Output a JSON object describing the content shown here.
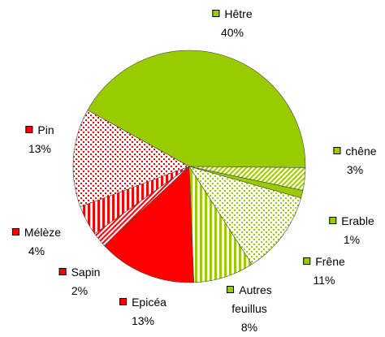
{
  "chart_data": {
    "type": "pie",
    "categories": [
      "Hêtre",
      "chêne",
      "Erable",
      "Frêne",
      "Autres feuillus",
      "Epicéa",
      "Sapin",
      "Mélèze",
      "Pin"
    ],
    "values": [
      40,
      3,
      1,
      11,
      8,
      13,
      2,
      4,
      13
    ],
    "value_labels": [
      "40%",
      "3%",
      "1%",
      "11%",
      "8%",
      "13%",
      "2%",
      "4%",
      "13%"
    ],
    "colors": [
      "#99cc00",
      "#99cc00",
      "#99cc00",
      "#99cc00",
      "#99cc00",
      "#ff0000",
      "#ff0000",
      "#ff0000",
      "#ff0000"
    ],
    "patterns": [
      "solid",
      "diagonal",
      "solid",
      "dots",
      "vertical",
      "solid",
      "diagonal",
      "vertical",
      "dots"
    ]
  }
}
